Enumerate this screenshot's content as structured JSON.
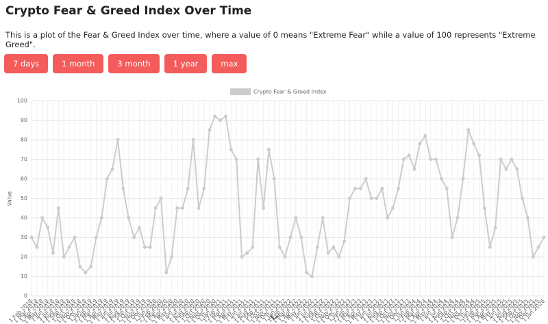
{
  "header": {
    "title": "Crypto Fear & Greed Index Over Time",
    "description": "This is a plot of the Fear & Greed Index over time, where a value of 0 means \"Extreme Fear\" while a value of 100 represents \"Extreme Greed\"."
  },
  "buttons": [
    "7 days",
    "1 month",
    "3 month",
    "1 year",
    "max"
  ],
  "chart_data": {
    "type": "line",
    "y_label": "Value",
    "categories": [
      "1 Feb 2018",
      "1 Mar 2018",
      "1 Apr 2018",
      "1 May 2018",
      "1 Jun 2018",
      "1 Jul 2018",
      "1 Aug 2018",
      "1 Sep 2018",
      "1 Oct 2018",
      "1 Nov 2018",
      "1 Dec 2018",
      "1 Jan 2019",
      "1 Feb 2019",
      "1 Mar 2019",
      "1 Apr 2019",
      "1 May 2019",
      "1 Jun 2019",
      "1 Jul 2019",
      "1 Aug 2019",
      "1 Sep 2019",
      "1 Oct 2019",
      "1 Nov 2019",
      "1 Dec 2019",
      "1 Jan 2020",
      "1 Feb 2020",
      "1 Mar 2020",
      "1 Apr 2020",
      "1 May 2020",
      "1 Jun 2020",
      "1 Jul 2020",
      "1 Aug 2020",
      "1 Sep 2020",
      "1 Oct 2020",
      "1 Nov 2020",
      "1 Dec 2020",
      "1 Jan 2021",
      "1 Feb 2021",
      "1 Mar 2021",
      "1 Apr 2021",
      "1 May 2021",
      "1 Jun 2021",
      "1 Jul 2021",
      "1 Aug 2021",
      "1 Sep 2021",
      "1 Oct 2021",
      "1 Nov 2021",
      "1 Dec 2021",
      "1 Jan 2022",
      "1 Feb 2022",
      "1 Mar 2022",
      "1 Apr 2022",
      "1 May 2022",
      "1 Jun 2022",
      "1 Jul 2022",
      "1 Aug 2022",
      "1 Sep 2022",
      "1 Oct 2022",
      "1 Nov 2022",
      "1 Dec 2022",
      "1 Jan 2023",
      "1 Feb 2023",
      "1 Mar 2023",
      "1 Apr 2023",
      "1 May 2023",
      "1 Jun 2023",
      "1 Jul 2023",
      "1 Aug 2023",
      "1 Sep 2023",
      "1 Oct 2023",
      "1 Nov 2023",
      "1 Dec 2023",
      "1 Jan 2024",
      "1 Feb 2024",
      "1 Mar 2024",
      "1 Apr 2024",
      "1 May 2024",
      "1 Jun 2024",
      "1 Jul 2024",
      "1 Aug 2024",
      "1 Sep 2024",
      "1 Oct 2024",
      "1 Nov 2024",
      "1 Dec 2024",
      "1 Jan 2025",
      "1 Feb 2025",
      "1 Mar 2025",
      "1 Apr 2025",
      "1 May 2025",
      "1 Jun 2025",
      "1 Jul 2025",
      "1 Aug 2025",
      "1 Sep 2025",
      "1 Oct 2025",
      "1 Nov 2025",
      "1 Dec 2025",
      "1 Jan 2026"
    ],
    "series": [
      {
        "name": "Crypto Fear & Greed Index",
        "color": "#cccccc",
        "values": [
          30,
          25,
          40,
          35,
          22,
          45,
          20,
          25,
          30,
          15,
          12,
          15,
          30,
          40,
          60,
          65,
          80,
          55,
          40,
          30,
          35,
          25,
          25,
          45,
          50,
          12,
          20,
          45,
          45,
          55,
          80,
          45,
          55,
          85,
          92,
          90,
          92,
          75,
          70,
          20,
          22,
          25,
          70,
          45,
          75,
          60,
          25,
          20,
          30,
          40,
          30,
          12,
          10,
          25,
          40,
          22,
          25,
          20,
          28,
          50,
          55,
          55,
          60,
          50,
          50,
          55,
          40,
          45,
          55,
          70,
          72,
          65,
          78,
          82,
          70,
          70,
          60,
          55,
          30,
          40,
          60,
          85,
          78,
          72,
          45,
          25,
          35,
          70,
          65,
          70,
          65,
          50,
          40,
          20,
          25,
          30
        ]
      }
    ],
    "ylim": [
      0,
      100
    ],
    "yticks": [
      0,
      10,
      20,
      30,
      40,
      50,
      60,
      70,
      80,
      90,
      100
    ],
    "grid": true
  }
}
